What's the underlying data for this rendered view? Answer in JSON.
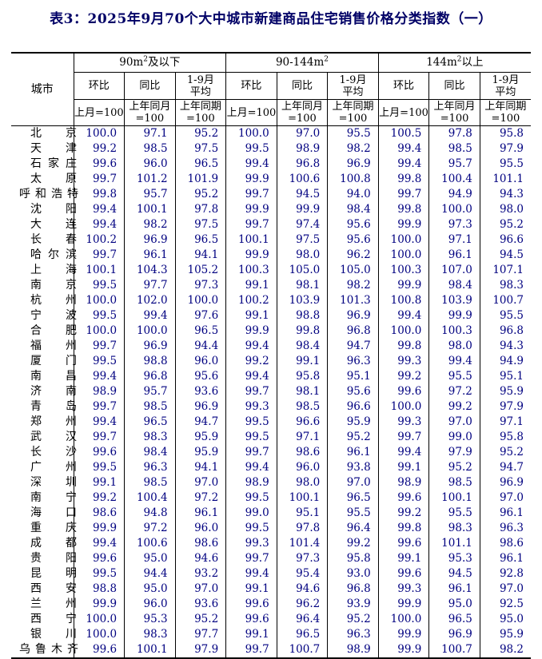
{
  "page": {
    "title": "表3：2025年9月70个大中城市新建商品住宅销售价格分类指数（一）"
  },
  "colors": {
    "title_text": "#000066",
    "value_text": "#000080",
    "border": "#000000"
  },
  "table": {
    "city_header": "城市",
    "groups": [
      {
        "pre": "90m",
        "sup": "2",
        "post": "及以下"
      },
      {
        "pre": "90-144m",
        "sup": "2",
        "post": ""
      },
      {
        "pre": "144m",
        "sup": "2",
        "post": "以上"
      }
    ],
    "measures": [
      {
        "top": [
          "环比"
        ],
        "bottom": [
          "上月=100"
        ]
      },
      {
        "top": [
          "同比"
        ],
        "bottom": [
          "上年同月",
          "=100"
        ]
      },
      {
        "top": [
          "1-9月",
          "平均"
        ],
        "bottom": [
          "上年同期",
          "=100"
        ]
      }
    ],
    "rows": [
      {
        "city": "北京",
        "values": [
          "100.0",
          "97.1",
          "95.2",
          "100.0",
          "97.0",
          "95.5",
          "100.5",
          "97.8",
          "95.8"
        ]
      },
      {
        "city": "天津",
        "values": [
          "99.2",
          "98.5",
          "97.5",
          "99.5",
          "98.9",
          "98.2",
          "99.4",
          "98.5",
          "97.9"
        ]
      },
      {
        "city": "石家庄",
        "values": [
          "99.6",
          "96.0",
          "96.5",
          "99.4",
          "96.8",
          "96.9",
          "99.4",
          "95.7",
          "95.5"
        ]
      },
      {
        "city": "太原",
        "values": [
          "99.7",
          "101.2",
          "101.9",
          "99.9",
          "100.6",
          "100.8",
          "99.8",
          "100.4",
          "101.1"
        ]
      },
      {
        "city": "呼和浩特",
        "values": [
          "99.8",
          "95.7",
          "95.2",
          "99.7",
          "94.5",
          "94.0",
          "99.7",
          "94.9",
          "94.3"
        ]
      },
      {
        "city": "沈阳",
        "values": [
          "99.4",
          "100.1",
          "97.8",
          "99.9",
          "99.9",
          "98.4",
          "99.8",
          "100.0",
          "98.0"
        ]
      },
      {
        "city": "大连",
        "values": [
          "99.4",
          "98.2",
          "97.5",
          "99.7",
          "97.4",
          "95.6",
          "99.9",
          "97.3",
          "95.2"
        ]
      },
      {
        "city": "长春",
        "values": [
          "100.2",
          "96.9",
          "96.5",
          "100.1",
          "97.5",
          "95.6",
          "100.0",
          "97.1",
          "96.6"
        ]
      },
      {
        "city": "哈尔滨",
        "values": [
          "99.7",
          "96.1",
          "94.1",
          "99.9",
          "98.0",
          "96.2",
          "100.0",
          "96.1",
          "94.5"
        ]
      },
      {
        "city": "上海",
        "values": [
          "100.1",
          "104.3",
          "105.2",
          "100.3",
          "105.0",
          "105.0",
          "100.3",
          "107.0",
          "107.1"
        ]
      },
      {
        "city": "南京",
        "values": [
          "99.5",
          "97.7",
          "97.3",
          "99.1",
          "98.1",
          "98.2",
          "99.9",
          "98.4",
          "98.3"
        ]
      },
      {
        "city": "杭州",
        "values": [
          "100.0",
          "102.0",
          "100.0",
          "100.2",
          "103.9",
          "101.3",
          "100.8",
          "103.9",
          "100.7"
        ]
      },
      {
        "city": "宁波",
        "values": [
          "99.5",
          "99.4",
          "97.6",
          "99.1",
          "98.8",
          "96.9",
          "99.4",
          "99.9",
          "95.5"
        ]
      },
      {
        "city": "合肥",
        "values": [
          "100.0",
          "100.0",
          "96.5",
          "99.9",
          "99.8",
          "96.8",
          "100.0",
          "100.3",
          "96.8"
        ]
      },
      {
        "city": "福州",
        "values": [
          "99.7",
          "96.9",
          "94.4",
          "99.4",
          "98.4",
          "94.7",
          "99.8",
          "98.0",
          "94.3"
        ]
      },
      {
        "city": "厦门",
        "values": [
          "99.5",
          "98.8",
          "96.0",
          "99.2",
          "99.1",
          "96.3",
          "99.3",
          "99.4",
          "94.9"
        ]
      },
      {
        "city": "南昌",
        "values": [
          "99.4",
          "96.8",
          "95.6",
          "99.4",
          "95.8",
          "95.1",
          "99.2",
          "95.5",
          "95.1"
        ]
      },
      {
        "city": "济南",
        "values": [
          "98.9",
          "95.7",
          "93.6",
          "99.7",
          "98.1",
          "95.6",
          "99.6",
          "97.2",
          "95.9"
        ]
      },
      {
        "city": "青岛",
        "values": [
          "99.7",
          "98.5",
          "96.9",
          "99.3",
          "98.5",
          "96.6",
          "100.0",
          "99.2",
          "97.9"
        ]
      },
      {
        "city": "郑州",
        "values": [
          "99.4",
          "96.5",
          "94.7",
          "99.5",
          "96.6",
          "95.9",
          "99.3",
          "97.0",
          "97.1"
        ]
      },
      {
        "city": "武汉",
        "values": [
          "99.7",
          "98.3",
          "95.9",
          "99.5",
          "97.1",
          "95.2",
          "99.7",
          "99.0",
          "95.8"
        ]
      },
      {
        "city": "长沙",
        "values": [
          "99.6",
          "98.4",
          "95.9",
          "99.7",
          "98.6",
          "96.1",
          "99.4",
          "97.9",
          "95.2"
        ]
      },
      {
        "city": "广州",
        "values": [
          "99.5",
          "96.3",
          "94.1",
          "99.4",
          "96.0",
          "93.8",
          "99.1",
          "95.2",
          "94.7"
        ]
      },
      {
        "city": "深圳",
        "values": [
          "99.1",
          "98.5",
          "97.0",
          "98.9",
          "98.0",
          "97.0",
          "98.9",
          "98.5",
          "96.9"
        ]
      },
      {
        "city": "南宁",
        "values": [
          "99.2",
          "100.4",
          "97.2",
          "99.5",
          "100.1",
          "96.5",
          "99.6",
          "100.1",
          "97.0"
        ]
      },
      {
        "city": "海口",
        "values": [
          "98.6",
          "94.8",
          "96.1",
          "99.0",
          "95.1",
          "95.5",
          "99.2",
          "95.5",
          "96.1"
        ]
      },
      {
        "city": "重庆",
        "values": [
          "99.9",
          "97.2",
          "96.0",
          "99.5",
          "97.8",
          "96.4",
          "99.8",
          "98.3",
          "96.3"
        ]
      },
      {
        "city": "成都",
        "values": [
          "99.4",
          "100.6",
          "98.6",
          "99.3",
          "101.4",
          "99.2",
          "99.6",
          "101.1",
          "98.6"
        ]
      },
      {
        "city": "贵阳",
        "values": [
          "99.6",
          "95.0",
          "94.6",
          "99.7",
          "97.3",
          "95.8",
          "99.1",
          "95.3",
          "96.1"
        ]
      },
      {
        "city": "昆明",
        "values": [
          "99.5",
          "94.4",
          "93.2",
          "99.4",
          "95.4",
          "93.0",
          "99.6",
          "94.5",
          "92.8"
        ]
      },
      {
        "city": "西安",
        "values": [
          "98.8",
          "95.0",
          "97.0",
          "99.1",
          "94.6",
          "96.8",
          "99.3",
          "96.1",
          "97.0"
        ]
      },
      {
        "city": "兰州",
        "values": [
          "99.9",
          "96.0",
          "93.6",
          "99.6",
          "96.2",
          "93.9",
          "99.9",
          "95.0",
          "92.5"
        ]
      },
      {
        "city": "西宁",
        "values": [
          "100.0",
          "95.3",
          "95.2",
          "99.6",
          "96.4",
          "95.2",
          "100.0",
          "96.5",
          "95.0"
        ]
      },
      {
        "city": "银川",
        "values": [
          "100.0",
          "98.3",
          "97.7",
          "99.1",
          "96.5",
          "96.3",
          "99.9",
          "96.9",
          "95.9"
        ]
      },
      {
        "city": "乌鲁木齐",
        "values": [
          "99.6",
          "100.1",
          "97.9",
          "99.7",
          "100.7",
          "98.9",
          "99.9",
          "100.7",
          "98.2"
        ]
      }
    ]
  }
}
